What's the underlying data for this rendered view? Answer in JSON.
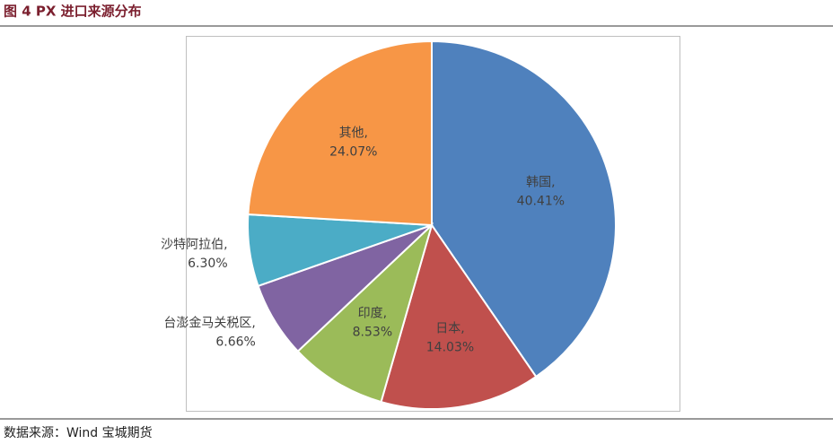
{
  "chart_data": {
    "type": "pie",
    "title": "图 4 PX 进口来源分布",
    "source": "数据来源：Wind 宝城期货",
    "categories": [
      "韩国,",
      "日本,",
      "印度,",
      "台澎金马关税区,",
      "沙特阿拉伯,",
      "其他,"
    ],
    "values": [
      40.41,
      14.03,
      8.53,
      6.66,
      6.3,
      24.07
    ],
    "value_labels": [
      "40.41%",
      "14.03%",
      "8.53%",
      "6.66%",
      "6.30%",
      "24.07%"
    ],
    "colors": [
      "#4f81bd",
      "#c0504d",
      "#9bbb59",
      "#8064a2",
      "#4bacc6",
      "#f79646"
    ]
  }
}
